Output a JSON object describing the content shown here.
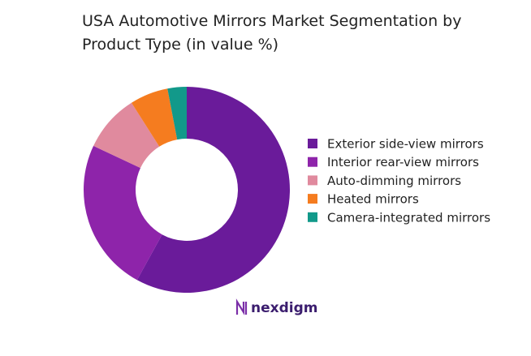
{
  "chart_data": {
    "type": "donut",
    "title": "USA Automotive Mirrors Market Segmentation by Product Type (in value %)",
    "categories": [
      "Exterior side-view mirrors",
      "Interior rear-view mirrors",
      "Auto-dimming mirrors",
      "Heated mirrors",
      "Camera-integrated mirrors"
    ],
    "values": [
      58,
      24,
      9,
      6,
      3
    ],
    "colors": [
      "#6a1b9a",
      "#8e24aa",
      "#e08a9e",
      "#f57c1f",
      "#12998a"
    ],
    "legend": "right"
  },
  "logo": "nexdigm"
}
